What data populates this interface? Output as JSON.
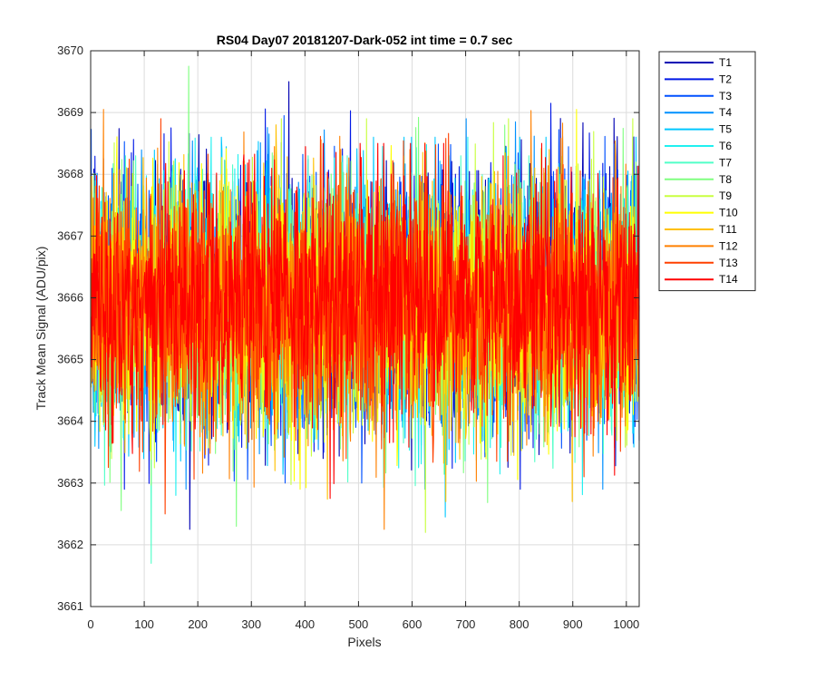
{
  "chart_data": {
    "type": "line",
    "title": "RS04 Day07 20181207-Dark-052 int time = 0.7 sec",
    "xlabel": "Pixels",
    "ylabel": "Track Mean Signal (ADU/pix)",
    "xlim": [
      0,
      1024
    ],
    "ylim": [
      3661,
      3670
    ],
    "xticks": [
      0,
      100,
      200,
      300,
      400,
      500,
      600,
      700,
      800,
      900,
      1000
    ],
    "yticks": [
      3661,
      3662,
      3663,
      3664,
      3665,
      3666,
      3667,
      3668,
      3669,
      3670
    ],
    "grid": true,
    "legend_position": "outside-top-right",
    "x": {
      "start": 1,
      "end": 1024,
      "step": 1
    },
    "series_summary": {
      "mean": 3665.9,
      "typical_range": [
        3664.0,
        3668.0
      ],
      "extreme_min": 3661.7,
      "extreme_max": 3669.75
    },
    "series": [
      {
        "name": "T1",
        "color": "#0000b4",
        "mean": 3666.0,
        "low": 3662.25,
        "high": 3669.5
      },
      {
        "name": "T2",
        "color": "#0018e6",
        "mean": 3666.0,
        "low": 3662.9,
        "high": 3669.15
      },
      {
        "name": "T3",
        "color": "#0050ff",
        "mean": 3665.95,
        "low": 3663.0,
        "high": 3668.95
      },
      {
        "name": "T4",
        "color": "#0090ff",
        "mean": 3665.9,
        "low": 3662.9,
        "high": 3668.9
      },
      {
        "name": "T5",
        "color": "#00c8ff",
        "mean": 3665.9,
        "low": 3662.45,
        "high": 3668.6
      },
      {
        "name": "T6",
        "color": "#20f0f0",
        "mean": 3665.9,
        "low": 3662.8,
        "high": 3668.6
      },
      {
        "name": "T7",
        "color": "#50ffc8",
        "mean": 3665.85,
        "low": 3661.7,
        "high": 3668.3
      },
      {
        "name": "T8",
        "color": "#80ff80",
        "mean": 3665.9,
        "low": 3662.3,
        "high": 3669.75
      },
      {
        "name": "T9",
        "color": "#c8ff40",
        "mean": 3665.9,
        "low": 3662.2,
        "high": 3668.9
      },
      {
        "name": "T10",
        "color": "#ffff00",
        "mean": 3665.85,
        "low": 3662.9,
        "high": 3669.05
      },
      {
        "name": "T11",
        "color": "#ffc000",
        "mean": 3665.9,
        "low": 3662.7,
        "high": 3668.8
      },
      {
        "name": "T12",
        "color": "#ff8000",
        "mean": 3665.9,
        "low": 3662.25,
        "high": 3669.05
      },
      {
        "name": "T13",
        "color": "#ff4000",
        "mean": 3665.95,
        "low": 3662.5,
        "high": 3668.9
      },
      {
        "name": "T14",
        "color": "#ff0000",
        "mean": 3666.0,
        "low": 3662.75,
        "high": 3668.5
      }
    ]
  }
}
